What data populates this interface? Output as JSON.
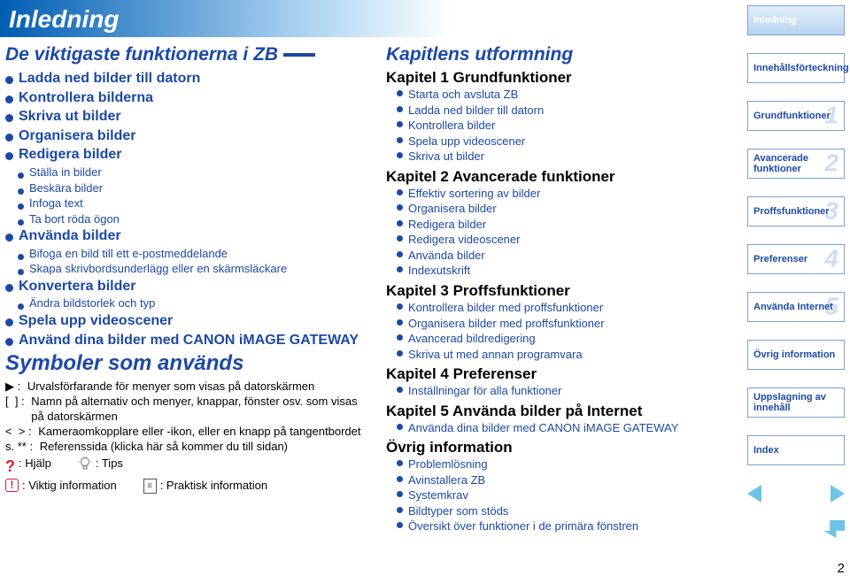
{
  "colors": {
    "brand_blue": "#1c49a6",
    "header_grad_from": "#005db1",
    "header_grad_to": "#ffffff",
    "sidebar_border": "#77a2d6",
    "sidebar_num": "#cddff2",
    "nav_triangle": "#6ec4e8",
    "danger": "#d81e36"
  },
  "page": {
    "title": "Inledning",
    "number": "2"
  },
  "left": {
    "section_title": "De viktigaste funktionerna i ZB",
    "items": [
      {
        "label": "Ladda ned bilder till datorn",
        "size": "big"
      },
      {
        "label": "Kontrollera bilderna",
        "size": "big"
      },
      {
        "label": "Skriva ut bilder",
        "size": "big"
      },
      {
        "label": "Organisera bilder",
        "size": "big"
      },
      {
        "label": "Redigera bilder",
        "size": "big"
      },
      {
        "label": "Ställa in bilder",
        "size": "small"
      },
      {
        "label": "Beskära bilder",
        "size": "small"
      },
      {
        "label": "Infoga text",
        "size": "small"
      },
      {
        "label": "Ta bort röda ögon",
        "size": "small"
      },
      {
        "label": "Använda bilder",
        "size": "big"
      },
      {
        "label": "Bifoga en bild till ett e-postmeddelande",
        "size": "small"
      },
      {
        "label": "Skapa skrivbordsunderlägg eller en skärmsläckare",
        "size": "small"
      },
      {
        "label": "Konvertera bilder",
        "size": "big"
      },
      {
        "label": "Ändra bildstorlek och typ",
        "size": "small"
      },
      {
        "label": "Spela upp videoscener",
        "size": "big"
      },
      {
        "label": "Använd dina bilder med CANON iMAGE GATEWAY",
        "size": "big"
      }
    ],
    "symbols_title": "Symboler som används",
    "symbols": [
      {
        "prefix": "▶ : ",
        "text": "Urvalsförfarande för menyer som visas på datorskärmen"
      },
      {
        "prefix": "[  ] : ",
        "text": "Namn på alternativ och menyer, knappar, fönster osv. som visas på datorskärmen"
      },
      {
        "prefix": "<  > : ",
        "text": "Kameraomkopplare eller -ikon, eller en knapp på tangentbordet"
      },
      {
        "prefix": "s. ** : ",
        "text": "Referenssida (klicka här så kommer du till sidan)"
      }
    ],
    "help_label": ": Hjälp",
    "tips_label": ": Tips",
    "important_label": ": Viktig information",
    "practical_label": ": Praktisk information"
  },
  "mid": {
    "section_title": "Kapitlens utformning",
    "chapters": [
      {
        "title": "Kapitel 1  Grundfunktioner",
        "items": [
          "Starta och avsluta ZB",
          "Ladda ned bilder till datorn",
          "Kontrollera bilder",
          "Spela upp videoscener",
          "Skriva ut bilder"
        ]
      },
      {
        "title": "Kapitel 2  Avancerade funktioner",
        "items": [
          "Effektiv sortering av bilder",
          "Organisera bilder",
          "Redigera bilder",
          "Redigera videoscener",
          "Använda bilder",
          "Indexutskrift"
        ]
      },
      {
        "title": "Kapitel 3  Proffsfunktioner",
        "items": [
          "Kontrollera bilder med proffsfunktioner",
          "Organisera bilder med proffsfunktioner",
          "Avancerad bildredigering",
          "Skriva ut med annan programvara"
        ]
      },
      {
        "title": "Kapitel 4  Preferenser",
        "items": [
          "Inställningar för alla funktioner"
        ]
      },
      {
        "title": "Kapitel 5  Använda bilder på Internet",
        "items": [
          "Använda dina bilder med CANON iMAGE GATEWAY"
        ]
      },
      {
        "title": "Övrig information",
        "items": [
          "Problemlösning",
          "Avinstallera ZB",
          "Systemkrav",
          "Bildtyper som stöds",
          "Översikt över funktioner i de primära fönstren"
        ]
      }
    ]
  },
  "sidebar": {
    "items": [
      {
        "label": "Inledning",
        "num": "",
        "current": true
      },
      {
        "label": "Innehållsförteckning",
        "num": ""
      },
      {
        "label": "Grundfunktioner",
        "num": "1"
      },
      {
        "label": "Avancerade funktioner",
        "num": "2"
      },
      {
        "label": "Proffsfunktioner",
        "num": "3"
      },
      {
        "label": "Preferenser",
        "num": "4"
      },
      {
        "label": "Använda Internet",
        "num": "5"
      },
      {
        "label": "Övrig information",
        "num": ""
      },
      {
        "label": "Uppslagning av innehåll",
        "num": ""
      },
      {
        "label": "Index",
        "num": ""
      }
    ]
  }
}
